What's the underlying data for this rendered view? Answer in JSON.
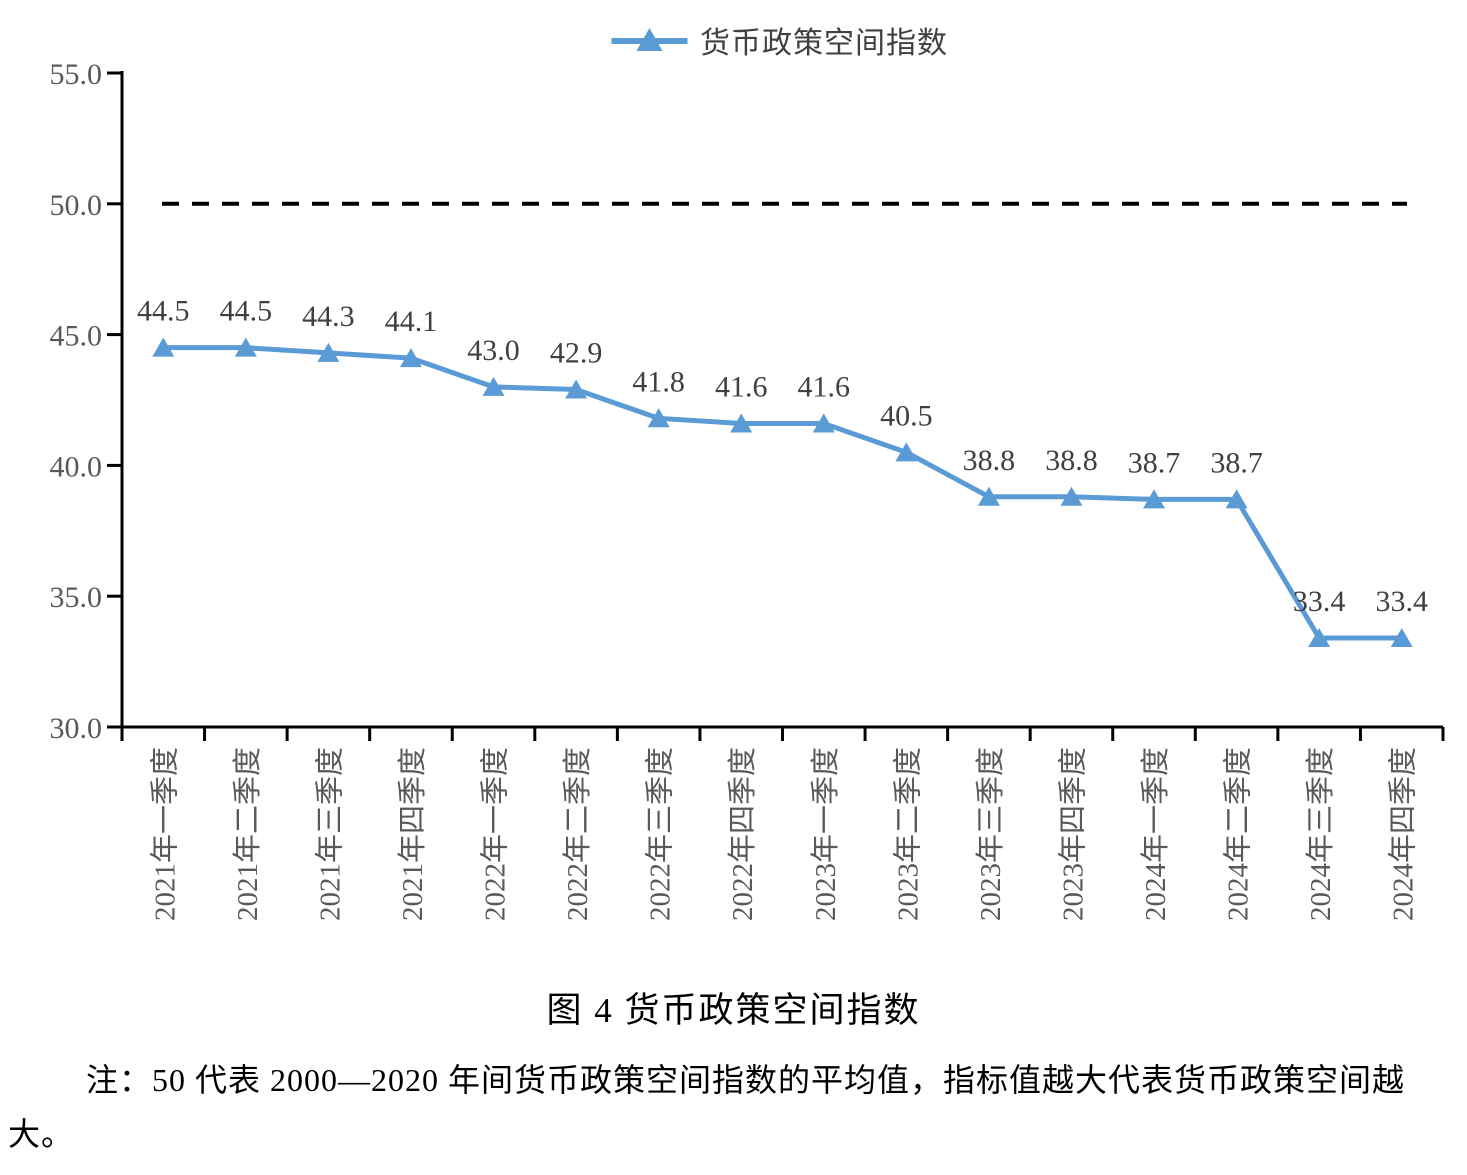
{
  "legend": {
    "label": "货币政策空间指数"
  },
  "caption": "图 4 货币政策空间指数",
  "note": "注：50 代表 2000—2020 年间货币政策空间指数的平均值，指标值越大代表货币政策空间越大。",
  "chart_data": {
    "type": "line",
    "title": "图 4 货币政策空间指数",
    "categories": [
      "2021年一季度",
      "2021年二季度",
      "2021年三季度",
      "2021年四季度",
      "2022年一季度",
      "2022年二季度",
      "2022年三季度",
      "2022年四季度",
      "2023年一季度",
      "2023年二季度",
      "2023年三季度",
      "2023年四季度",
      "2024年一季度",
      "2024年二季度",
      "2024年三季度",
      "2024年四季度"
    ],
    "series": [
      {
        "name": "货币政策空间指数",
        "values": [
          44.5,
          44.5,
          44.3,
          44.1,
          43.0,
          42.9,
          41.8,
          41.6,
          41.6,
          40.5,
          38.8,
          38.8,
          38.7,
          38.7,
          33.4,
          33.4
        ]
      }
    ],
    "marker": "triangle",
    "data_labels": true,
    "ylim": [
      30,
      55
    ],
    "yticks": [
      30,
      35,
      40,
      45,
      50,
      55
    ],
    "reference_line": 50,
    "grid": false,
    "legend_position": "top-center",
    "xlabel": "",
    "ylabel": "",
    "colors": {
      "series": "#5B9BD5",
      "reference_line": "#000000",
      "axis": "#000000",
      "tick_label": "#595959",
      "data_label": "#404040"
    }
  }
}
